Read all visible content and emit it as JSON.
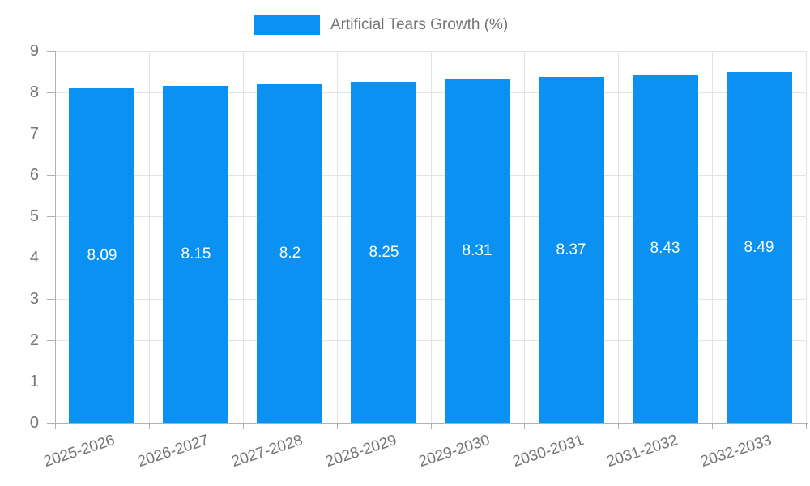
{
  "chart_data": {
    "type": "bar",
    "title": "",
    "legend": "Artificial Tears Growth (%)",
    "legend_position": "top",
    "categories": [
      "2025-2026",
      "2026-2027",
      "2027-2028",
      "2028-2029",
      "2029-2030",
      "2030-2031",
      "2031-2032",
      "2032-2033"
    ],
    "series": [
      {
        "name": "Artificial Tears Growth (%)",
        "values": [
          8.09,
          8.15,
          8.2,
          8.25,
          8.31,
          8.37,
          8.43,
          8.49
        ],
        "value_labels": [
          "8.09",
          "8.15",
          "8.2",
          "8.25",
          "8.31",
          "8.37",
          "8.43",
          "8.49"
        ]
      }
    ],
    "xlabel": "",
    "ylabel": "",
    "ylim": [
      0,
      9
    ],
    "yticks": [
      0,
      1,
      2,
      3,
      4,
      5,
      6,
      7,
      8,
      9
    ],
    "grid": true,
    "colors": {
      "bar": "#0a91f2",
      "grid": "#e3e3e3",
      "axis": "#b0b0b0",
      "text": "#757575",
      "value_label": "#ffffff"
    }
  }
}
